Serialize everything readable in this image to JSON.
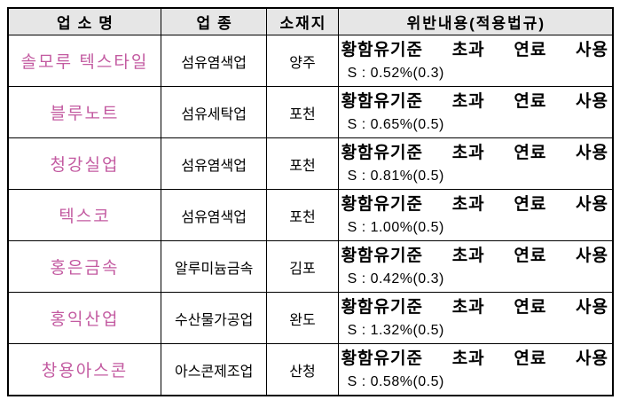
{
  "colors": {
    "business_name_text": "#c35ba1",
    "header_background": "#e6e6e6",
    "border": "#000000",
    "body_text": "#000000"
  },
  "table": {
    "headers": [
      "업소명",
      "업종",
      "소재지",
      "위반내용(적용법규)"
    ],
    "rows": [
      {
        "name": "솔모루 텍스타일",
        "industry": "섬유염색업",
        "location": "양주",
        "violation": "황함유기준 초과 연료 사용",
        "detail": "S : 0.52%(0.3)"
      },
      {
        "name": "블루노트",
        "industry": "섬유세탁업",
        "location": "포천",
        "violation": "황함유기준 초과 연료 사용",
        "detail": "S : 0.65%(0.5)"
      },
      {
        "name": "청강실업",
        "industry": "섬유염색업",
        "location": "포천",
        "violation": "황함유기준 초과 연료 사용",
        "detail": "S : 0.81%(0.5)"
      },
      {
        "name": "텍스코",
        "industry": "섬유염색업",
        "location": "포천",
        "violation": "황함유기준 초과 연료 사용",
        "detail": "S : 1.00%(0.5)"
      },
      {
        "name": "홍은금속",
        "industry": "알루미늄금속",
        "location": "김포",
        "violation": "황함유기준 초과 연료 사용",
        "detail": "S : 0.42%(0.3)"
      },
      {
        "name": "홍익산업",
        "industry": "수산물가공업",
        "location": "완도",
        "violation": "황함유기준 초과 연료 사용",
        "detail": "S : 1.32%(0.5)"
      },
      {
        "name": "창용아스콘",
        "industry": "아스콘제조업",
        "location": "산청",
        "violation": "황함유기준 초과 연료 사용",
        "detail": "S : 0.58%(0.5)"
      }
    ]
  }
}
